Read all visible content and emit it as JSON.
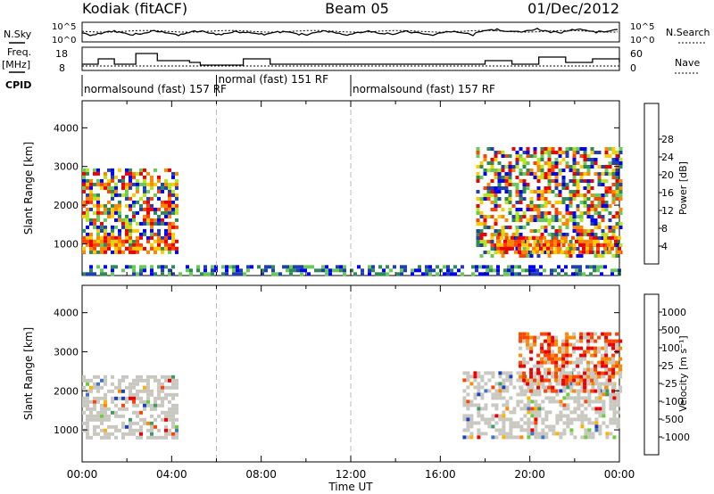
{
  "header": {
    "station": "Kodiak (fitACF)",
    "beam": "Beam 05",
    "date": "01/Dec/2012"
  },
  "strip_labels": {
    "nsky": "N.Sky",
    "nsearch": "N.Search",
    "freq": "Freq.",
    "mhz": "[MHz]",
    "nave": "Nave",
    "cpid": "CPID"
  },
  "strip_ticks": {
    "nsky_top": "10^5",
    "nsky_bottom": "10^0",
    "nsearch_top": "10^5",
    "nsearch_bottom": "10^0",
    "freq_top": "18",
    "freq_bottom": "8",
    "nave_top": "60",
    "nave_bottom": "0"
  },
  "cpid_labels": [
    {
      "text": "normalsound (fast) 157 RF",
      "start_hour": 0.0
    },
    {
      "text": "normal (fast) 151 RF",
      "start_hour": 6.0
    },
    {
      "text": "normalsound (fast) 157 RF",
      "start_hour": 12.0
    }
  ],
  "chart_data": [
    {
      "type": "heatmap",
      "name": "power",
      "xlabel": "",
      "ylabel": "Slant Range [km]",
      "xlim": [
        0,
        24
      ],
      "ylim": [
        180,
        4700
      ],
      "yticks": [
        "1000",
        "2000",
        "3000",
        "4000"
      ],
      "colorbar_label": "Power [dB]",
      "colorbar_ticks": [
        "4",
        "8",
        "12",
        "16",
        "20",
        "24",
        "28"
      ],
      "colorbar_colors": [
        "#0000ff",
        "#2040b0",
        "#2e8b57",
        "#66cc55",
        "#b5e61d",
        "#ffcc00",
        "#ff8800",
        "#ff4400",
        "#ee0000"
      ],
      "vertical_markers_hours": [
        6,
        12
      ],
      "regions": [
        {
          "name": "early-evening echoes",
          "hours": [
            0.0,
            4.2
          ],
          "range_km": [
            750,
            2950
          ],
          "level": "mixed"
        },
        {
          "name": "early strong band",
          "hours": [
            0.0,
            4.2
          ],
          "range_km": [
            800,
            1200
          ],
          "level": "high"
        },
        {
          "name": "near-range ground scatter",
          "hours": [
            0.0,
            24.0
          ],
          "range_km": [
            200,
            450
          ],
          "level": "low"
        },
        {
          "name": "late evening echoes",
          "hours": [
            17.6,
            24.0
          ],
          "range_km": [
            700,
            3500
          ],
          "level": "mixed"
        },
        {
          "name": "late strong band",
          "hours": [
            18.5,
            24.0
          ],
          "range_km": [
            800,
            1200
          ],
          "level": "high"
        }
      ]
    },
    {
      "type": "heatmap",
      "name": "velocity",
      "xlabel": "Time UT",
      "ylabel": "Slant Range [km]",
      "xlim": [
        0,
        24
      ],
      "ylim": [
        180,
        4700
      ],
      "xticks": [
        "00:00",
        "04:00",
        "08:00",
        "12:00",
        "16:00",
        "20:00",
        "00:00"
      ],
      "yticks": [
        "1000",
        "2000",
        "3000",
        "4000"
      ],
      "colorbar_label": "Velocity [m s⁻¹]",
      "colorbar_ticks": [
        "1000",
        "500",
        "100",
        "25",
        "-25",
        "-100",
        "-500",
        "-1000"
      ],
      "colorbar_colors": [
        "#1c3fbf",
        "#3f74c9",
        "#3e9a67",
        "#6ccc3a",
        "#c8c8c0",
        "#ffb000",
        "#ff8800",
        "#ff4400",
        "#ee0000"
      ],
      "vertical_markers_hours": [
        6,
        12
      ],
      "regions": [
        {
          "name": "early ground scatter",
          "hours": [
            0.0,
            4.2
          ],
          "range_km": [
            800,
            2400
          ],
          "level": "gray"
        },
        {
          "name": "late ground scatter",
          "hours": [
            17.0,
            24.0
          ],
          "range_km": [
            800,
            2500
          ],
          "level": "gray"
        },
        {
          "name": "late receding echoes",
          "hours": [
            19.5,
            24.0
          ],
          "range_km": [
            2000,
            3500
          ],
          "level": "orange"
        }
      ]
    }
  ]
}
